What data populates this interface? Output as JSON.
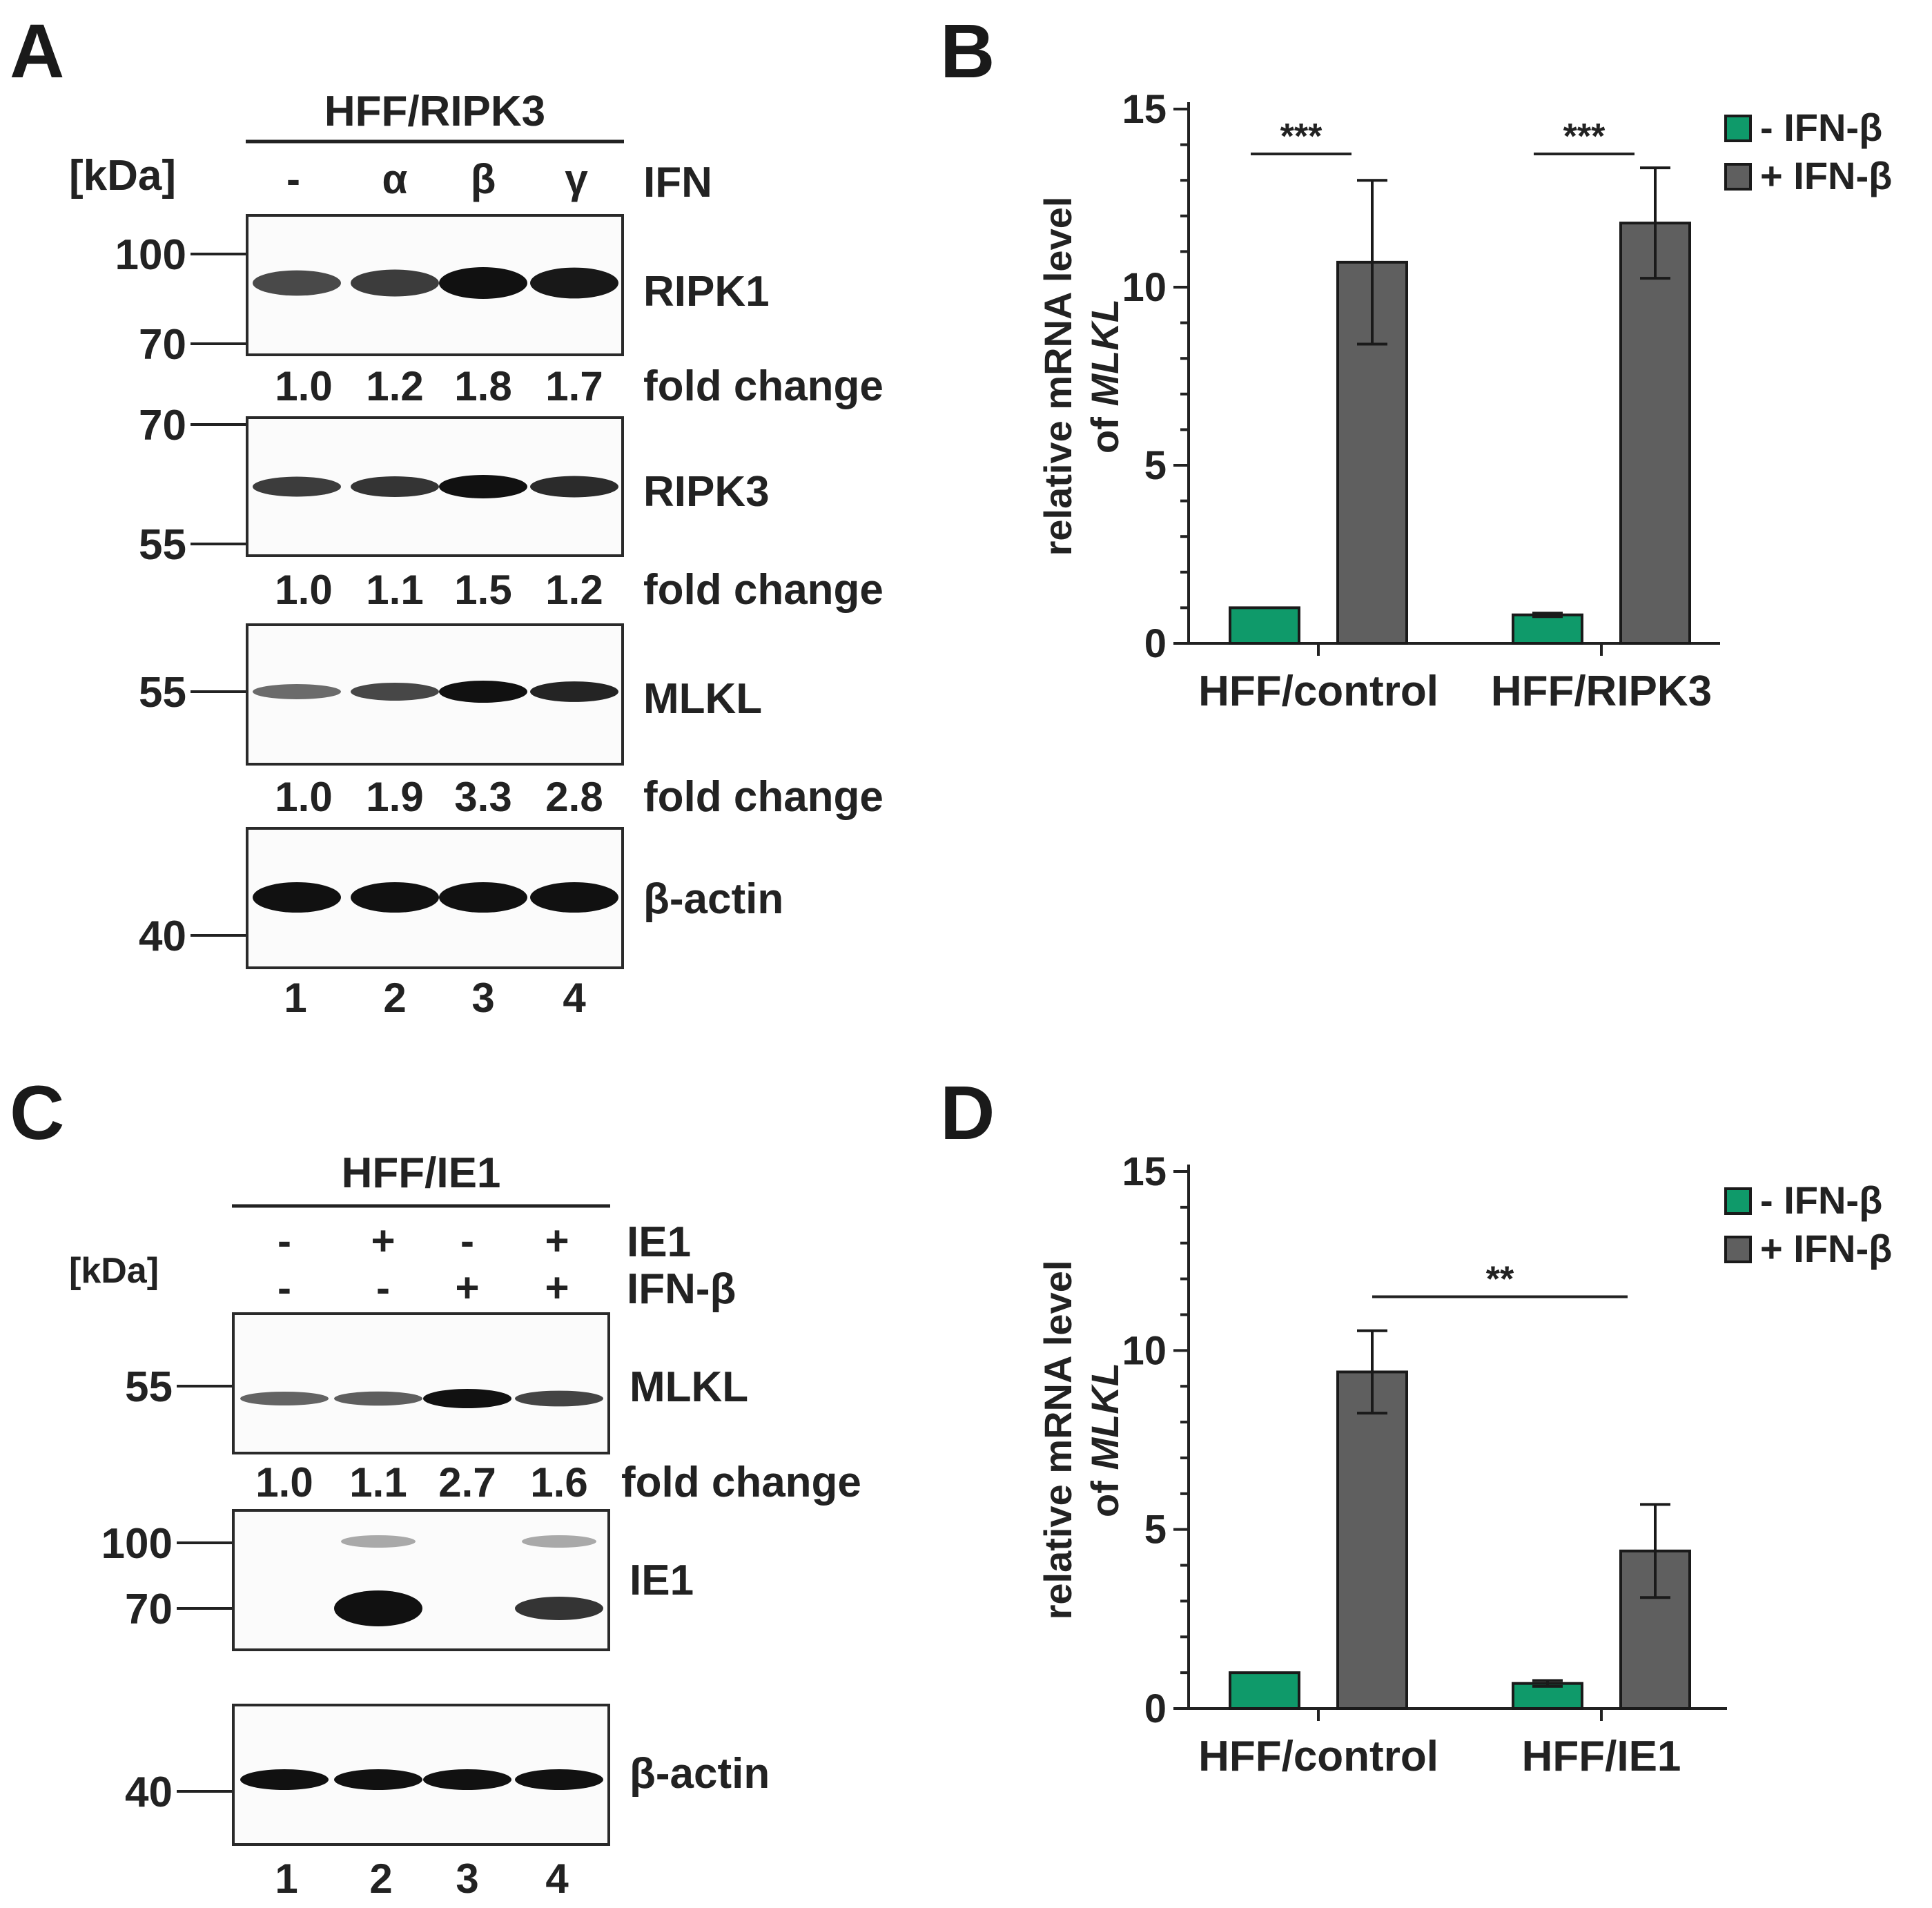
{
  "panels": {
    "A": {
      "letter": "A",
      "cell_line": "HFF/RIPK3",
      "kda_label": "[kDa]",
      "treatment_label": "IFN",
      "treatments": [
        "-",
        "α",
        "β",
        "γ"
      ],
      "lanes": [
        "1",
        "2",
        "3",
        "4"
      ],
      "fold_label": "fold change",
      "blots": [
        {
          "name": "RIPK1",
          "markers": [
            "100",
            "70"
          ],
          "fold": [
            "1.0",
            "1.2",
            "1.8",
            "1.7"
          ],
          "intensity": [
            1.0,
            1.2,
            1.8,
            1.7
          ]
        },
        {
          "name": "RIPK3",
          "markers": [
            "70",
            "55"
          ],
          "fold": [
            "1.0",
            "1.1",
            "1.5",
            "1.2"
          ],
          "intensity": [
            1.0,
            1.1,
            1.5,
            1.2
          ]
        },
        {
          "name": "MLKL",
          "markers": [
            "55"
          ],
          "fold": [
            "1.0",
            "1.9",
            "3.3",
            "2.8"
          ],
          "intensity": [
            1.0,
            1.9,
            3.3,
            2.8
          ]
        },
        {
          "name": "β-actin",
          "markers": [
            "40"
          ],
          "fold": null,
          "intensity": [
            1.0,
            1.0,
            1.0,
            1.0
          ]
        }
      ]
    },
    "C": {
      "letter": "C",
      "cell_line": "HFF/IE1",
      "kda_label": "[kDa]",
      "row1_label": "IE1",
      "row1": [
        "-",
        "+",
        "-",
        "+"
      ],
      "row2_label": "IFN-β",
      "row2": [
        "-",
        "-",
        "+",
        "+"
      ],
      "lanes": [
        "1",
        "2",
        "3",
        "4"
      ],
      "fold_label": "fold change",
      "blots": [
        {
          "name": "MLKL",
          "markers": [
            "55"
          ],
          "fold": [
            "1.0",
            "1.1",
            "2.7",
            "1.6"
          ],
          "intensity": [
            1.0,
            1.1,
            2.7,
            1.6
          ]
        },
        {
          "name": "IE1",
          "markers": [
            "100",
            "70"
          ],
          "fold": null
        },
        {
          "name": "β-actin",
          "markers": [
            "40"
          ],
          "fold": null,
          "intensity": [
            1.0,
            1.0,
            1.0,
            1.0
          ]
        }
      ]
    },
    "B": {
      "letter": "B"
    },
    "D": {
      "letter": "D"
    }
  },
  "chart_data": [
    {
      "panel": "B",
      "type": "bar",
      "ylabel_line1": "relative mRNA level",
      "ylabel_line2_prefix": "of ",
      "ylabel_gene": "MLKL",
      "ylim": [
        0,
        15
      ],
      "yticks": [
        "0",
        "5",
        "10",
        "15"
      ],
      "categories": [
        "HFF/control",
        "HFF/RIPK3"
      ],
      "series": [
        {
          "name": "- IFN-β",
          "color": "#0f9a6a",
          "values": [
            1.0,
            0.8
          ],
          "errors": [
            0.0,
            0.05
          ]
        },
        {
          "name": "+ IFN-β",
          "color": "#5f5f5f",
          "values": [
            10.7,
            11.8
          ],
          "errors": [
            2.3,
            1.55
          ]
        }
      ],
      "significance": [
        {
          "label": "***",
          "category": 0
        },
        {
          "label": "***",
          "category": 1
        }
      ],
      "legend": "top-right"
    },
    {
      "panel": "D",
      "type": "bar",
      "ylabel_line1": "relative mRNA level",
      "ylabel_line2_prefix": "of ",
      "ylabel_gene": "MLKL",
      "ylim": [
        0,
        15
      ],
      "yticks": [
        "0",
        "5",
        "10",
        "15"
      ],
      "categories": [
        "HFF/control",
        "HFF/IE1"
      ],
      "series": [
        {
          "name": "- IFN-β",
          "color": "#0f9a6a",
          "values": [
            1.0,
            0.7
          ],
          "errors": [
            0.0,
            0.08
          ]
        },
        {
          "name": "+ IFN-β",
          "color": "#5f5f5f",
          "values": [
            9.4,
            4.4
          ],
          "errors": [
            1.15,
            1.3
          ]
        }
      ],
      "significance": [
        {
          "label": "**",
          "between": "+ IFN-β HFF/control vs + IFN-β HFF/IE1"
        }
      ],
      "legend": "top-right"
    }
  ]
}
